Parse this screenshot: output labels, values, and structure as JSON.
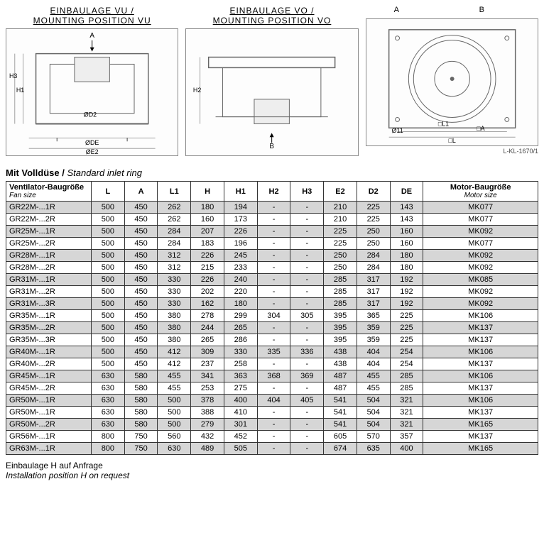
{
  "diagrams": {
    "left_label_de": "EINBAULAGE VU /",
    "left_label_en": "MOUNTING POSITION VU",
    "mid_label_de": "EINBAULAGE VO /",
    "mid_label_en": "MOUNTING POSITION VO",
    "right_top_a": "A",
    "right_top_b": "B",
    "ref": "L-KL-1670/1",
    "dim_labels": {
      "A": "A",
      "B": "B",
      "H1": "H1",
      "H2": "H2",
      "H3": "H3",
      "D2": "ØD2",
      "DE": "ØDE",
      "E2": "ØE2",
      "L1": "□L1",
      "L": "□L",
      "A2": "□A",
      "d11": "Ø11"
    }
  },
  "table_title_de": "Mit Volldüse /",
  "table_title_en": "Standard inlet ring",
  "columns": [
    {
      "key": "fan",
      "de": "Ventilator-Baugröße",
      "en": "Fan size"
    },
    {
      "key": "L",
      "de": "L"
    },
    {
      "key": "A",
      "de": "A"
    },
    {
      "key": "L1",
      "de": "L1"
    },
    {
      "key": "H",
      "de": "H"
    },
    {
      "key": "H1",
      "de": "H1"
    },
    {
      "key": "H2",
      "de": "H2"
    },
    {
      "key": "H3",
      "de": "H3"
    },
    {
      "key": "E2",
      "de": "E2"
    },
    {
      "key": "D2",
      "de": "D2"
    },
    {
      "key": "DE",
      "de": "DE"
    },
    {
      "key": "motor",
      "de": "Motor-Baugröße",
      "en": "Motor size"
    }
  ],
  "rows": [
    {
      "shaded": true,
      "fan": "GR22M-...1R",
      "L": "500",
      "A": "450",
      "L1": "262",
      "H": "180",
      "H1": "194",
      "H2": "-",
      "H3": "-",
      "E2": "210",
      "D2": "225",
      "DE": "143",
      "motor": "MK077"
    },
    {
      "shaded": false,
      "fan": "GR22M-...2R",
      "L": "500",
      "A": "450",
      "L1": "262",
      "H": "160",
      "H1": "173",
      "H2": "-",
      "H3": "-",
      "E2": "210",
      "D2": "225",
      "DE": "143",
      "motor": "MK077"
    },
    {
      "shaded": true,
      "fan": "GR25M-...1R",
      "L": "500",
      "A": "450",
      "L1": "284",
      "H": "207",
      "H1": "226",
      "H2": "-",
      "H3": "-",
      "E2": "225",
      "D2": "250",
      "DE": "160",
      "motor": "MK092"
    },
    {
      "shaded": false,
      "fan": "GR25M-...2R",
      "L": "500",
      "A": "450",
      "L1": "284",
      "H": "183",
      "H1": "196",
      "H2": "-",
      "H3": "-",
      "E2": "225",
      "D2": "250",
      "DE": "160",
      "motor": "MK077"
    },
    {
      "shaded": true,
      "fan": "GR28M-...1R",
      "L": "500",
      "A": "450",
      "L1": "312",
      "H": "226",
      "H1": "245",
      "H2": "-",
      "H3": "-",
      "E2": "250",
      "D2": "284",
      "DE": "180",
      "motor": "MK092"
    },
    {
      "shaded": false,
      "fan": "GR28M-...2R",
      "L": "500",
      "A": "450",
      "L1": "312",
      "H": "215",
      "H1": "233",
      "H2": "-",
      "H3": "-",
      "E2": "250",
      "D2": "284",
      "DE": "180",
      "motor": "MK092"
    },
    {
      "shaded": true,
      "fan": "GR31M-...1R",
      "L": "500",
      "A": "450",
      "L1": "330",
      "H": "226",
      "H1": "240",
      "H2": "-",
      "H3": "-",
      "E2": "285",
      "D2": "317",
      "DE": "192",
      "motor": "MK085"
    },
    {
      "shaded": false,
      "fan": "GR31M-...2R",
      "L": "500",
      "A": "450",
      "L1": "330",
      "H": "202",
      "H1": "220",
      "H2": "-",
      "H3": "-",
      "E2": "285",
      "D2": "317",
      "DE": "192",
      "motor": "MK092"
    },
    {
      "shaded": true,
      "fan": "GR31M-...3R",
      "L": "500",
      "A": "450",
      "L1": "330",
      "H": "162",
      "H1": "180",
      "H2": "-",
      "H3": "-",
      "E2": "285",
      "D2": "317",
      "DE": "192",
      "motor": "MK092"
    },
    {
      "shaded": false,
      "fan": "GR35M-...1R",
      "L": "500",
      "A": "450",
      "L1": "380",
      "H": "278",
      "H1": "299",
      "H2": "304",
      "H3": "305",
      "E2": "395",
      "D2": "365",
      "DE": "225",
      "motor": "MK106"
    },
    {
      "shaded": true,
      "fan": "GR35M-...2R",
      "L": "500",
      "A": "450",
      "L1": "380",
      "H": "244",
      "H1": "265",
      "H2": "-",
      "H3": "-",
      "E2": "395",
      "D2": "359",
      "DE": "225",
      "motor": "MK137"
    },
    {
      "shaded": false,
      "fan": "GR35M-...3R",
      "L": "500",
      "A": "450",
      "L1": "380",
      "H": "265",
      "H1": "286",
      "H2": "-",
      "H3": "-",
      "E2": "395",
      "D2": "359",
      "DE": "225",
      "motor": "MK137"
    },
    {
      "shaded": true,
      "fan": "GR40M-...1R",
      "L": "500",
      "A": "450",
      "L1": "412",
      "H": "309",
      "H1": "330",
      "H2": "335",
      "H3": "336",
      "E2": "438",
      "D2": "404",
      "DE": "254",
      "motor": "MK106"
    },
    {
      "shaded": false,
      "fan": "GR40M-...2R",
      "L": "500",
      "A": "450",
      "L1": "412",
      "H": "237",
      "H1": "258",
      "H2": "-",
      "H3": "-",
      "E2": "438",
      "D2": "404",
      "DE": "254",
      "motor": "MK137"
    },
    {
      "shaded": true,
      "fan": "GR45M-...1R",
      "L": "630",
      "A": "580",
      "L1": "455",
      "H": "341",
      "H1": "363",
      "H2": "368",
      "H3": "369",
      "E2": "487",
      "D2": "455",
      "DE": "285",
      "motor": "MK106"
    },
    {
      "shaded": false,
      "fan": "GR45M-...2R",
      "L": "630",
      "A": "580",
      "L1": "455",
      "H": "253",
      "H1": "275",
      "H2": "-",
      "H3": "-",
      "E2": "487",
      "D2": "455",
      "DE": "285",
      "motor": "MK137"
    },
    {
      "shaded": true,
      "fan": "GR50M-...1R",
      "L": "630",
      "A": "580",
      "L1": "500",
      "H": "378",
      "H1": "400",
      "H2": "404",
      "H3": "405",
      "E2": "541",
      "D2": "504",
      "DE": "321",
      "motor": "MK106"
    },
    {
      "shaded": false,
      "fan": "GR50M-...1R",
      "L": "630",
      "A": "580",
      "L1": "500",
      "H": "388",
      "H1": "410",
      "H2": "-",
      "H3": "-",
      "E2": "541",
      "D2": "504",
      "DE": "321",
      "motor": "MK137"
    },
    {
      "shaded": true,
      "fan": "GR50M-...2R",
      "L": "630",
      "A": "580",
      "L1": "500",
      "H": "279",
      "H1": "301",
      "H2": "-",
      "H3": "-",
      "E2": "541",
      "D2": "504",
      "DE": "321",
      "motor": "MK165"
    },
    {
      "shaded": false,
      "fan": "GR56M-...1R",
      "L": "800",
      "A": "750",
      "L1": "560",
      "H": "432",
      "H1": "452",
      "H2": "-",
      "H3": "-",
      "E2": "605",
      "D2": "570",
      "DE": "357",
      "motor": "MK137"
    },
    {
      "shaded": true,
      "fan": "GR63M-...1R",
      "L": "800",
      "A": "750",
      "L1": "630",
      "H": "489",
      "H1": "505",
      "H2": "-",
      "H3": "-",
      "E2": "674",
      "D2": "635",
      "DE": "400",
      "motor": "MK165"
    }
  ],
  "bottom_note_de": "Einbaulage H auf Anfrage",
  "bottom_note_en": "Installation position H on request",
  "colors": {
    "shaded_row": "#d6d6d6",
    "border": "#333333",
    "diagram_line": "#888888"
  }
}
